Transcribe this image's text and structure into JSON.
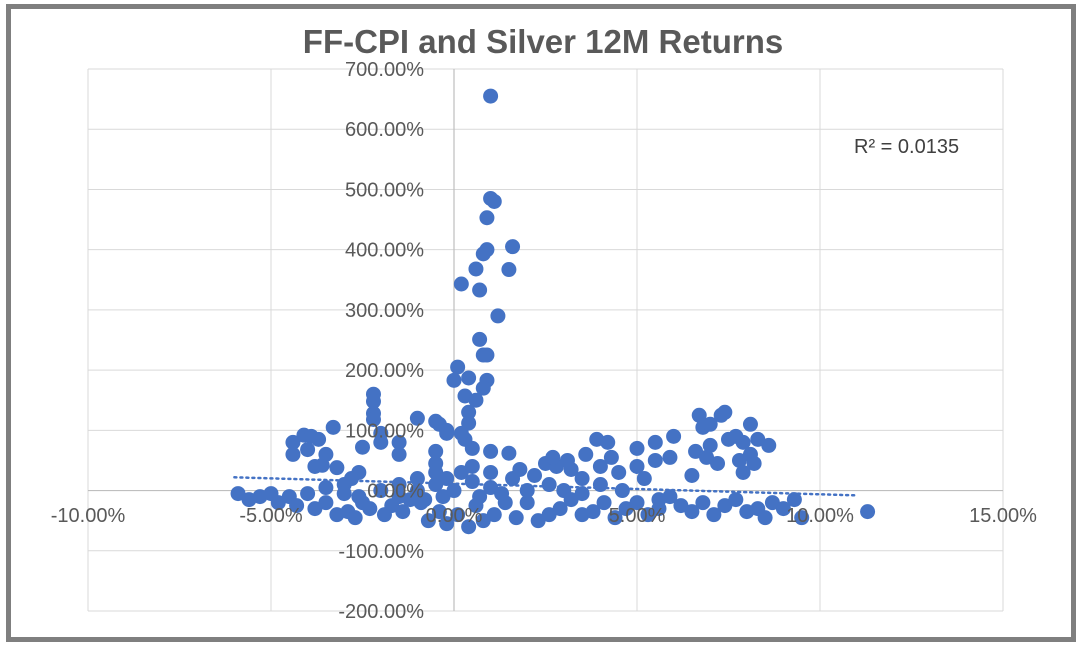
{
  "chart_data": {
    "type": "scatter",
    "title": "FF-CPI and Silver 12M Returns",
    "xlabel": "",
    "ylabel": "",
    "xlim": [
      -10,
      15
    ],
    "ylim": [
      -200,
      700
    ],
    "x_ticks": [
      -10,
      -5,
      0,
      5,
      10,
      15
    ],
    "x_tick_labels": [
      "-10.00%",
      "-5.00%",
      "0.00%",
      "5.00%",
      "10.00%",
      "15.00%"
    ],
    "y_ticks": [
      -200,
      -100,
      0,
      100,
      200,
      300,
      400,
      500,
      600,
      700
    ],
    "y_tick_labels": [
      "-200.00%",
      "-100.00%",
      "0.00%",
      "100.00%",
      "200.00%",
      "300.00%",
      "400.00%",
      "500.00%",
      "600.00%",
      "700.00%"
    ],
    "grid": true,
    "marker_color": "#4472C4",
    "trendline": {
      "type": "linear",
      "style": "dotted",
      "color": "#4472C4",
      "x": [
        -6,
        11
      ],
      "y": [
        22,
        -8
      ]
    },
    "annotation": "R² = 0.0135",
    "series": [
      {
        "values": [
          [
            1.0,
            655
          ],
          [
            1.0,
            485
          ],
          [
            1.1,
            480
          ],
          [
            0.9,
            453
          ],
          [
            1.6,
            405
          ],
          [
            0.9,
            400
          ],
          [
            0.8,
            393
          ],
          [
            0.6,
            368
          ],
          [
            1.5,
            367
          ],
          [
            0.2,
            343
          ],
          [
            0.7,
            333
          ],
          [
            1.2,
            290
          ],
          [
            0.7,
            251
          ],
          [
            0.8,
            225
          ],
          [
            0.9,
            225
          ],
          [
            0.1,
            205
          ],
          [
            0.0,
            183
          ],
          [
            0.4,
            187
          ],
          [
            0.9,
            183
          ],
          [
            0.8,
            170
          ],
          [
            0.3,
            157
          ],
          [
            0.6,
            150
          ],
          [
            0.4,
            130
          ],
          [
            0.4,
            112
          ],
          [
            -2.2,
            160
          ],
          [
            -2.2,
            148
          ],
          [
            -2.2,
            128
          ],
          [
            -2.2,
            118
          ],
          [
            -1.0,
            120
          ],
          [
            -0.5,
            115
          ],
          [
            -0.4,
            110
          ],
          [
            -0.2,
            100
          ],
          [
            -0.2,
            95
          ],
          [
            -3.3,
            105
          ],
          [
            -3.7,
            85
          ],
          [
            -4.1,
            92
          ],
          [
            -4.4,
            80
          ],
          [
            -4.4,
            60
          ],
          [
            -3.9,
            90
          ],
          [
            -4.0,
            68
          ],
          [
            -2.5,
            72
          ],
          [
            -3.5,
            60
          ],
          [
            -2.0,
            80
          ],
          [
            -2.0,
            95
          ],
          [
            -1.5,
            80
          ],
          [
            -1.5,
            60
          ],
          [
            -0.5,
            65
          ],
          [
            -0.5,
            45
          ],
          [
            0.5,
            70
          ],
          [
            1.0,
            65
          ],
          [
            1.5,
            62
          ],
          [
            0.3,
            85
          ],
          [
            0.2,
            95
          ],
          [
            -3.8,
            40
          ],
          [
            -3.6,
            42
          ],
          [
            -3.2,
            38
          ],
          [
            -2.6,
            30
          ],
          [
            -2.8,
            20
          ],
          [
            -3.0,
            10
          ],
          [
            -3.5,
            5
          ],
          [
            -3.0,
            -5
          ],
          [
            -2.6,
            -10
          ],
          [
            -2.0,
            0
          ],
          [
            -1.5,
            10
          ],
          [
            -1.5,
            -10
          ],
          [
            -1.0,
            20
          ],
          [
            -1.0,
            0
          ],
          [
            -0.8,
            -15
          ],
          [
            -0.5,
            30
          ],
          [
            -0.5,
            10
          ],
          [
            -0.3,
            -10
          ],
          [
            -0.2,
            20
          ],
          [
            0.0,
            0
          ],
          [
            0.2,
            30
          ],
          [
            0.5,
            40
          ],
          [
            0.5,
            15
          ],
          [
            0.7,
            -10
          ],
          [
            1.0,
            30
          ],
          [
            1.0,
            5
          ],
          [
            1.3,
            -5
          ],
          [
            1.6,
            20
          ],
          [
            1.8,
            35
          ],
          [
            2.0,
            0
          ],
          [
            2.2,
            25
          ],
          [
            2.5,
            45
          ],
          [
            2.6,
            10
          ],
          [
            2.8,
            40
          ],
          [
            3.0,
            0
          ],
          [
            3.2,
            35
          ],
          [
            3.5,
            20
          ],
          [
            3.5,
            -5
          ],
          [
            4.0,
            40
          ],
          [
            4.0,
            10
          ],
          [
            4.3,
            55
          ],
          [
            4.5,
            30
          ],
          [
            4.6,
            0
          ],
          [
            5.0,
            70
          ],
          [
            5.0,
            40
          ],
          [
            5.2,
            20
          ],
          [
            5.5,
            80
          ],
          [
            5.5,
            50
          ],
          [
            5.6,
            -15
          ],
          [
            6.0,
            90
          ],
          [
            5.9,
            55
          ],
          [
            3.9,
            85
          ],
          [
            4.2,
            80
          ],
          [
            3.6,
            60
          ],
          [
            3.1,
            50
          ],
          [
            2.7,
            55
          ],
          [
            -5.9,
            -5
          ],
          [
            -5.6,
            -15
          ],
          [
            -5.3,
            -10
          ],
          [
            -5.0,
            -5
          ],
          [
            -4.8,
            -20
          ],
          [
            -4.5,
            -10
          ],
          [
            -4.3,
            -25
          ],
          [
            -4.0,
            -5
          ],
          [
            -3.8,
            -30
          ],
          [
            -3.5,
            -20
          ],
          [
            -3.2,
            -40
          ],
          [
            -2.9,
            -35
          ],
          [
            -2.7,
            -45
          ],
          [
            -2.5,
            -20
          ],
          [
            -2.3,
            -30
          ],
          [
            -1.9,
            -40
          ],
          [
            -1.7,
            -25
          ],
          [
            -1.4,
            -35
          ],
          [
            -1.2,
            -15
          ],
          [
            -0.9,
            -20
          ],
          [
            -0.7,
            -50
          ],
          [
            -0.4,
            -35
          ],
          [
            -0.2,
            -55
          ],
          [
            0.1,
            -40
          ],
          [
            0.4,
            -60
          ],
          [
            0.6,
            -25
          ],
          [
            0.8,
            -50
          ],
          [
            1.1,
            -40
          ],
          [
            1.4,
            -20
          ],
          [
            1.7,
            -45
          ],
          [
            2.0,
            -20
          ],
          [
            2.3,
            -50
          ],
          [
            2.6,
            -40
          ],
          [
            2.9,
            -30
          ],
          [
            3.2,
            -15
          ],
          [
            3.5,
            -40
          ],
          [
            3.8,
            -35
          ],
          [
            4.1,
            -20
          ],
          [
            4.4,
            -45
          ],
          [
            4.7,
            -30
          ],
          [
            5.0,
            -20
          ],
          [
            5.3,
            -40
          ],
          [
            5.6,
            -30
          ],
          [
            5.9,
            -10
          ],
          [
            6.2,
            -25
          ],
          [
            6.5,
            -35
          ],
          [
            6.8,
            -20
          ],
          [
            7.1,
            -40
          ],
          [
            7.4,
            -25
          ],
          [
            7.7,
            -15
          ],
          [
            8.0,
            -35
          ],
          [
            8.3,
            -30
          ],
          [
            8.5,
            -45
          ],
          [
            8.7,
            -20
          ],
          [
            9.0,
            -30
          ],
          [
            9.3,
            -15
          ],
          [
            9.5,
            -45
          ],
          [
            11.3,
            -35
          ],
          [
            6.7,
            125
          ],
          [
            7.4,
            130
          ],
          [
            7.3,
            125
          ],
          [
            6.8,
            105
          ],
          [
            7.0,
            110
          ],
          [
            8.1,
            110
          ],
          [
            7.5,
            85
          ],
          [
            7.9,
            80
          ],
          [
            8.3,
            85
          ],
          [
            8.6,
            75
          ],
          [
            7.0,
            75
          ],
          [
            6.6,
            65
          ],
          [
            6.9,
            55
          ],
          [
            7.2,
            45
          ],
          [
            7.8,
            50
          ],
          [
            8.1,
            60
          ],
          [
            8.2,
            45
          ],
          [
            7.9,
            30
          ],
          [
            6.5,
            25
          ],
          [
            7.7,
            90
          ]
        ]
      }
    ]
  }
}
